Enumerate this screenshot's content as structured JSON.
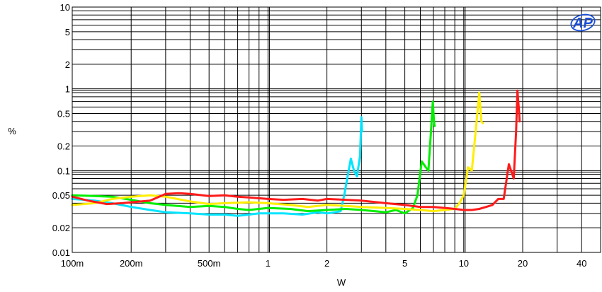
{
  "chart_data": {
    "type": "line",
    "title": "",
    "xlabel": "W",
    "ylabel": "%",
    "x_scale": "log",
    "y_scale": "log",
    "xlim": [
      0.1,
      50
    ],
    "ylim": [
      0.01,
      10
    ],
    "grid": true,
    "x_ticks": [
      {
        "value": 0.1,
        "label": "100m"
      },
      {
        "value": 0.2,
        "label": "200m"
      },
      {
        "value": 0.5,
        "label": "500m"
      },
      {
        "value": 1,
        "label": "1"
      },
      {
        "value": 2,
        "label": "2"
      },
      {
        "value": 5,
        "label": "5"
      },
      {
        "value": 10,
        "label": "10"
      },
      {
        "value": 20,
        "label": "20"
      },
      {
        "value": 40,
        "label": "40"
      }
    ],
    "y_ticks": [
      {
        "value": 10,
        "label": "10"
      },
      {
        "value": 5,
        "label": "5"
      },
      {
        "value": 2,
        "label": "2"
      },
      {
        "value": 1,
        "label": "1"
      },
      {
        "value": 0.5,
        "label": "0.5"
      },
      {
        "value": 0.2,
        "label": "0.2"
      },
      {
        "value": 0.1,
        "label": "0.1"
      },
      {
        "value": 0.05,
        "label": "0.05"
      },
      {
        "value": 0.02,
        "label": "0.02"
      },
      {
        "value": 0.01,
        "label": "0.01"
      }
    ],
    "logo": "AP",
    "series": [
      {
        "color": "#00e5ff",
        "points": [
          [
            0.1,
            0.045
          ],
          [
            0.13,
            0.043
          ],
          [
            0.16,
            0.04
          ],
          [
            0.2,
            0.036
          ],
          [
            0.25,
            0.033
          ],
          [
            0.3,
            0.031
          ],
          [
            0.4,
            0.03
          ],
          [
            0.5,
            0.029
          ],
          [
            0.6,
            0.029
          ],
          [
            0.7,
            0.028
          ],
          [
            0.8,
            0.029
          ],
          [
            0.9,
            0.03
          ],
          [
            1.0,
            0.03
          ],
          [
            1.2,
            0.03
          ],
          [
            1.5,
            0.029
          ],
          [
            1.8,
            0.031
          ],
          [
            2.0,
            0.03
          ],
          [
            2.2,
            0.031
          ],
          [
            2.35,
            0.032
          ],
          [
            2.45,
            0.05
          ],
          [
            2.55,
            0.085
          ],
          [
            2.65,
            0.14
          ],
          [
            2.75,
            0.1
          ],
          [
            2.85,
            0.085
          ],
          [
            2.95,
            0.15
          ],
          [
            3.0,
            0.45
          ],
          [
            3.02,
            0.3
          ]
        ]
      },
      {
        "color": "#00ee00",
        "points": [
          [
            0.1,
            0.05
          ],
          [
            0.13,
            0.049
          ],
          [
            0.16,
            0.048
          ],
          [
            0.2,
            0.044
          ],
          [
            0.25,
            0.04
          ],
          [
            0.3,
            0.038
          ],
          [
            0.4,
            0.036
          ],
          [
            0.5,
            0.037
          ],
          [
            0.6,
            0.036
          ],
          [
            0.7,
            0.034
          ],
          [
            0.8,
            0.033
          ],
          [
            1.0,
            0.035
          ],
          [
            1.3,
            0.034
          ],
          [
            1.6,
            0.032
          ],
          [
            2.0,
            0.033
          ],
          [
            2.5,
            0.034
          ],
          [
            3.0,
            0.033
          ],
          [
            3.5,
            0.032
          ],
          [
            4.0,
            0.031
          ],
          [
            4.5,
            0.033
          ],
          [
            5.0,
            0.03
          ],
          [
            5.5,
            0.035
          ],
          [
            5.8,
            0.05
          ],
          [
            6.1,
            0.13
          ],
          [
            6.4,
            0.11
          ],
          [
            6.6,
            0.1
          ],
          [
            6.8,
            0.3
          ],
          [
            6.95,
            0.7
          ],
          [
            7.05,
            0.4
          ],
          [
            7.1,
            0.35
          ]
        ]
      },
      {
        "color": "#ffee00",
        "points": [
          [
            0.1,
            0.038
          ],
          [
            0.13,
            0.04
          ],
          [
            0.16,
            0.045
          ],
          [
            0.2,
            0.048
          ],
          [
            0.25,
            0.05
          ],
          [
            0.3,
            0.048
          ],
          [
            0.4,
            0.042
          ],
          [
            0.5,
            0.039
          ],
          [
            0.6,
            0.04
          ],
          [
            0.8,
            0.041
          ],
          [
            1.0,
            0.04
          ],
          [
            1.3,
            0.038
          ],
          [
            1.6,
            0.036
          ],
          [
            2.0,
            0.038
          ],
          [
            2.5,
            0.037
          ],
          [
            3.0,
            0.036
          ],
          [
            4.0,
            0.035
          ],
          [
            5.0,
            0.034
          ],
          [
            6.0,
            0.033
          ],
          [
            7.0,
            0.032
          ],
          [
            8.0,
            0.033
          ],
          [
            9.0,
            0.034
          ],
          [
            9.5,
            0.04
          ],
          [
            10.0,
            0.05
          ],
          [
            10.5,
            0.11
          ],
          [
            11.0,
            0.1
          ],
          [
            11.5,
            0.3
          ],
          [
            12.0,
            0.9
          ],
          [
            12.3,
            0.4
          ],
          [
            12.5,
            0.38
          ]
        ]
      },
      {
        "color": "#ff1a1a",
        "points": [
          [
            0.1,
            0.048
          ],
          [
            0.12,
            0.043
          ],
          [
            0.15,
            0.039
          ],
          [
            0.18,
            0.04
          ],
          [
            0.2,
            0.041
          ],
          [
            0.25,
            0.043
          ],
          [
            0.3,
            0.052
          ],
          [
            0.35,
            0.053
          ],
          [
            0.4,
            0.052
          ],
          [
            0.5,
            0.049
          ],
          [
            0.6,
            0.05
          ],
          [
            0.7,
            0.048
          ],
          [
            0.8,
            0.047
          ],
          [
            1.0,
            0.045
          ],
          [
            1.2,
            0.044
          ],
          [
            1.5,
            0.045
          ],
          [
            1.8,
            0.043
          ],
          [
            2.0,
            0.045
          ],
          [
            2.5,
            0.044
          ],
          [
            3.0,
            0.043
          ],
          [
            4.0,
            0.04
          ],
          [
            5.0,
            0.038
          ],
          [
            6.0,
            0.036
          ],
          [
            7.0,
            0.036
          ],
          [
            8.0,
            0.035
          ],
          [
            9.0,
            0.034
          ],
          [
            10.0,
            0.033
          ],
          [
            11.0,
            0.033
          ],
          [
            12.0,
            0.034
          ],
          [
            13.0,
            0.036
          ],
          [
            14.0,
            0.038
          ],
          [
            15.0,
            0.045
          ],
          [
            16.0,
            0.045
          ],
          [
            17.0,
            0.12
          ],
          [
            18.0,
            0.08
          ],
          [
            18.5,
            0.3
          ],
          [
            18.8,
            0.95
          ],
          [
            19.2,
            0.5
          ],
          [
            19.3,
            0.4
          ]
        ]
      }
    ]
  }
}
